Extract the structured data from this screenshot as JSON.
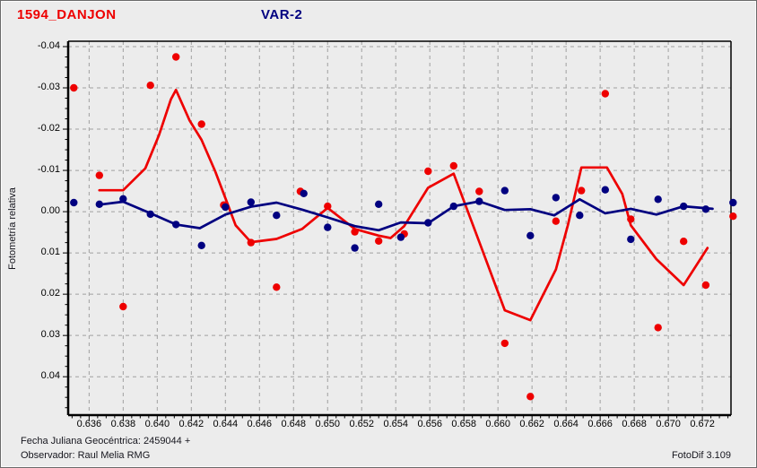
{
  "header": {
    "title_left": "1594_DANJON",
    "title_right": "VAR-2"
  },
  "footer": {
    "line1": "Fecha Juliana Geocéntrica: 2459044 +",
    "line2": "Observador: Raul Melia RMG",
    "right": "FotoDif 3.109"
  },
  "colors": {
    "background": "#ececec",
    "red": "#ee0000",
    "navy": "#000080",
    "grid": "#a0a0a0",
    "axis": "#000000",
    "text": "#000000"
  },
  "chart_data": {
    "type": "scatter",
    "title": "1594_DANJON",
    "series_label": "VAR-2",
    "xlabel": "",
    "ylabel": "Fotometría relativa",
    "y_inverted": true,
    "grid": true,
    "legend": "none",
    "xlim": [
      0.63477,
      0.67368
    ],
    "ylim": [
      -0.0413,
      0.0493
    ],
    "x_ticks": [
      "0.636",
      "0.638",
      "0.640",
      "0.642",
      "0.644",
      "0.646",
      "0.648",
      "0.650",
      "0.652",
      "0.654",
      "0.656",
      "0.658",
      "0.660",
      "0.662",
      "0.664",
      "0.666",
      "0.668",
      "0.670",
      "0.672"
    ],
    "y_ticks": [
      "-0.04",
      "-0.03",
      "-0.02",
      "-0.01",
      "0.00",
      "0.01",
      "0.02",
      "0.03",
      "0.04"
    ],
    "series": [
      {
        "name": "red_scatter",
        "type": "scatter",
        "color": "#ee0000",
        "points": [
          [
            0.6351,
            -0.03
          ],
          [
            0.6366,
            -0.0088
          ],
          [
            0.638,
            0.023
          ],
          [
            0.6396,
            -0.0306
          ],
          [
            0.6411,
            -0.0375
          ],
          [
            0.6426,
            -0.0212
          ],
          [
            0.6439,
            -0.0016
          ],
          [
            0.6455,
            0.0075
          ],
          [
            0.647,
            0.0183
          ],
          [
            0.6484,
            -0.0049
          ],
          [
            0.65,
            -0.0013
          ],
          [
            0.6516,
            0.0049
          ],
          [
            0.653,
            0.0071
          ],
          [
            0.6545,
            0.0054
          ],
          [
            0.6559,
            -0.0098
          ],
          [
            0.6574,
            -0.0111
          ],
          [
            0.6589,
            -0.0049
          ],
          [
            0.6604,
            0.0319
          ],
          [
            0.6619,
            0.0448
          ],
          [
            0.6634,
            0.0023
          ],
          [
            0.6649,
            -0.0051
          ],
          [
            0.6663,
            -0.0286
          ],
          [
            0.6678,
            0.0018
          ],
          [
            0.6694,
            0.0281
          ],
          [
            0.6709,
            0.0072
          ],
          [
            0.6722,
            0.0178
          ],
          [
            0.6738,
            0.0011
          ]
        ]
      },
      {
        "name": "blue_scatter",
        "type": "scatter",
        "color": "#000080",
        "points": [
          [
            0.6351,
            -0.0022
          ],
          [
            0.6366,
            -0.0018
          ],
          [
            0.638,
            -0.0031
          ],
          [
            0.6396,
            0.0006
          ],
          [
            0.6411,
            0.0031
          ],
          [
            0.6426,
            0.0082
          ],
          [
            0.644,
            -0.0011
          ],
          [
            0.6455,
            -0.0023
          ],
          [
            0.647,
            0.0009
          ],
          [
            0.6486,
            -0.0044
          ],
          [
            0.65,
            0.0038
          ],
          [
            0.6516,
            0.0088
          ],
          [
            0.653,
            -0.0018
          ],
          [
            0.6543,
            0.0062
          ],
          [
            0.6559,
            0.0027
          ],
          [
            0.6574,
            -0.0013
          ],
          [
            0.6589,
            -0.0025
          ],
          [
            0.6604,
            -0.0051
          ],
          [
            0.6619,
            0.0058
          ],
          [
            0.6634,
            -0.0034
          ],
          [
            0.6648,
            0.0009
          ],
          [
            0.6663,
            -0.0053
          ],
          [
            0.6678,
            0.0067
          ],
          [
            0.6694,
            -0.003
          ],
          [
            0.6709,
            -0.0013
          ],
          [
            0.6722,
            -0.0006
          ],
          [
            0.6738,
            -0.0022
          ]
        ]
      },
      {
        "name": "red_curve",
        "type": "line",
        "color": "#ee0000",
        "points": [
          [
            0.6366,
            -0.0052
          ],
          [
            0.638,
            -0.0052
          ],
          [
            0.6393,
            -0.0105
          ],
          [
            0.6401,
            -0.0185
          ],
          [
            0.6408,
            -0.0272
          ],
          [
            0.6411,
            -0.0295
          ],
          [
            0.6419,
            -0.0221
          ],
          [
            0.6426,
            -0.0174
          ],
          [
            0.6434,
            -0.0098
          ],
          [
            0.6441,
            -0.0022
          ],
          [
            0.6446,
            0.0033
          ],
          [
            0.6455,
            0.0074
          ],
          [
            0.647,
            0.0066
          ],
          [
            0.6485,
            0.0042
          ],
          [
            0.65,
            -0.0009
          ],
          [
            0.6516,
            0.0042
          ],
          [
            0.653,
            0.0058
          ],
          [
            0.6537,
            0.0064
          ],
          [
            0.6545,
            0.0035
          ],
          [
            0.6559,
            -0.0058
          ],
          [
            0.6574,
            -0.0092
          ],
          [
            0.6589,
            0.0073
          ],
          [
            0.6604,
            0.0239
          ],
          [
            0.6619,
            0.0263
          ],
          [
            0.6634,
            0.014
          ],
          [
            0.6641,
            0.0033
          ],
          [
            0.6649,
            -0.0107
          ],
          [
            0.6664,
            -0.0107
          ],
          [
            0.6673,
            -0.0043
          ],
          [
            0.6678,
            0.0033
          ],
          [
            0.6693,
            0.0115
          ],
          [
            0.6709,
            0.0178
          ],
          [
            0.6723,
            0.0088
          ]
        ]
      },
      {
        "name": "blue_curve",
        "type": "line",
        "color": "#000080",
        "points": [
          [
            0.6366,
            -0.0017
          ],
          [
            0.638,
            -0.0024
          ],
          [
            0.6396,
            0.0004
          ],
          [
            0.6411,
            0.0031
          ],
          [
            0.6425,
            0.004
          ],
          [
            0.644,
            0.0007
          ],
          [
            0.6455,
            -0.0012
          ],
          [
            0.647,
            -0.0022
          ],
          [
            0.6485,
            -0.0005
          ],
          [
            0.65,
            0.0014
          ],
          [
            0.6516,
            0.0035
          ],
          [
            0.653,
            0.0045
          ],
          [
            0.6543,
            0.0026
          ],
          [
            0.6559,
            0.0028
          ],
          [
            0.6574,
            -0.0013
          ],
          [
            0.6589,
            -0.0025
          ],
          [
            0.6604,
            -0.0004
          ],
          [
            0.6619,
            -0.0006
          ],
          [
            0.6633,
            0.0009
          ],
          [
            0.6648,
            -0.003
          ],
          [
            0.6663,
            0.0004
          ],
          [
            0.6678,
            -0.0007
          ],
          [
            0.6693,
            0.0007
          ],
          [
            0.6709,
            -0.0013
          ],
          [
            0.6726,
            -0.0007
          ]
        ]
      }
    ]
  }
}
